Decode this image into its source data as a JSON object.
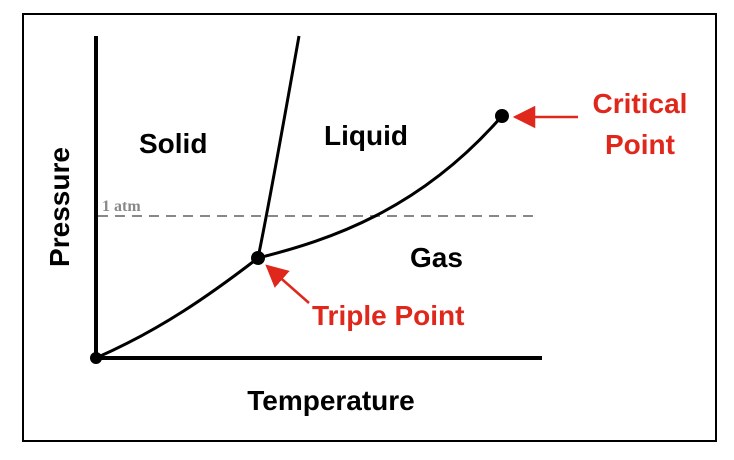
{
  "regions": {
    "solid": "Solid",
    "liquid": "Liquid",
    "gas": "Gas"
  },
  "axes": {
    "x_label": "Temperature",
    "y_label": "Pressure"
  },
  "reference_line": {
    "label": "1 atm",
    "style": "dashed"
  },
  "points": {
    "triple": "Triple Point",
    "critical_line1": "Critical",
    "critical_line2": "Point"
  },
  "colors": {
    "text": "#000000",
    "annotation": "#e0271c",
    "reference_line": "#888888",
    "frame": "#000000"
  }
}
